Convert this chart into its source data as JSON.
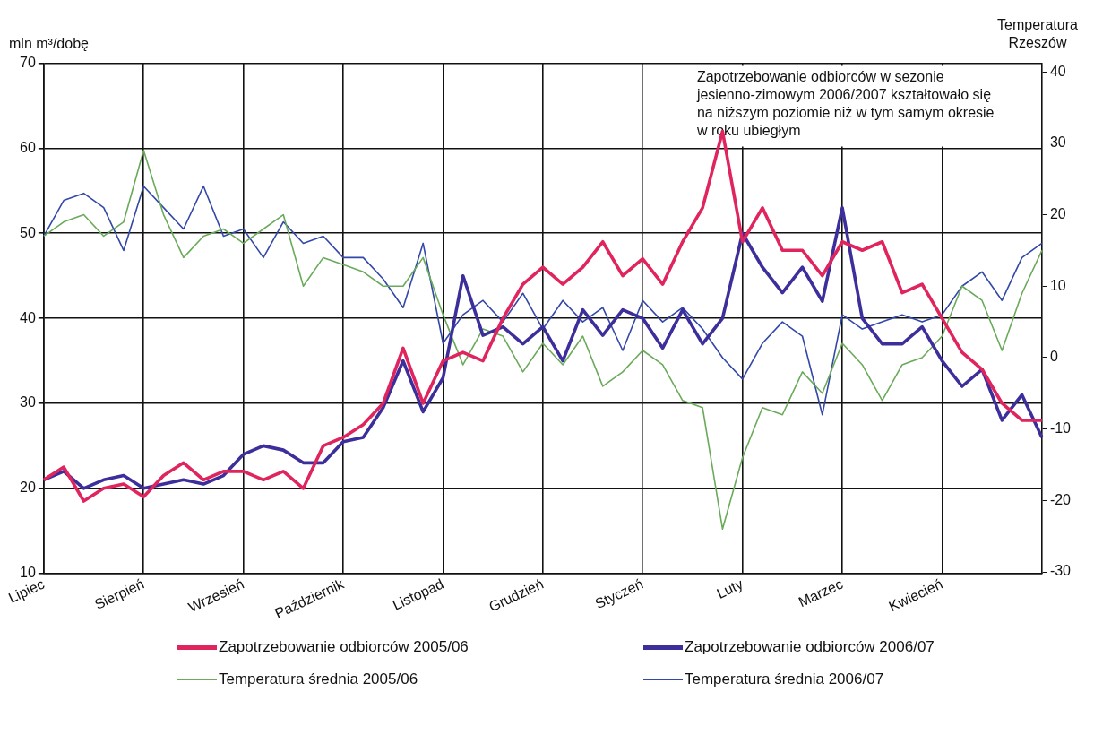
{
  "chart_data": {
    "type": "line",
    "ylabel": "mln m³/dobę",
    "y2label": "Temperatura Rzeszów",
    "annotations": [
      "Zapotrzebowanie odbiorców w sezonie jesienno-zimowym 2006/2007 kształtowało się na niższym poziomie niż w tym samym okresie w roku ubiegłym"
    ],
    "categories": [
      "Lipiec",
      null,
      null,
      null,
      null,
      "Sierpień",
      null,
      null,
      null,
      null,
      "Wrzesień",
      null,
      null,
      null,
      null,
      "Październik",
      null,
      null,
      null,
      null,
      "Listopad",
      null,
      null,
      null,
      null,
      "Grudzień",
      null,
      null,
      null,
      null,
      "Styczeń",
      null,
      null,
      null,
      null,
      "Luty",
      null,
      null,
      null,
      null,
      "Marzec",
      null,
      null,
      null,
      null,
      "Kwiecień",
      null,
      null,
      null,
      null,
      null
    ],
    "ylim": [
      10,
      70
    ],
    "yticks": [
      10,
      20,
      30,
      40,
      50,
      60,
      70
    ],
    "y2lim": [
      -30.2,
      41.2
    ],
    "y2ticks": [
      -30,
      -20,
      -10,
      0,
      10,
      20,
      30,
      40
    ],
    "grid": true,
    "legend": "bottom",
    "line_style": "solid",
    "marker": "none",
    "series": [
      {
        "name": "Zapotrzebowanie odbiorców 2005/06",
        "color": "#e0245e",
        "values": [
          21,
          22.5,
          18.5,
          20,
          20.5,
          19,
          21.5,
          23,
          21,
          22,
          22,
          21,
          22,
          20,
          25,
          26,
          27.5,
          30,
          36.5,
          30,
          35,
          36,
          35,
          40,
          44,
          46,
          44,
          46,
          49,
          45,
          47,
          44,
          49,
          53,
          62,
          49,
          53,
          48,
          48,
          45,
          49,
          48,
          49,
          43,
          44,
          40,
          36,
          34,
          30,
          28,
          28
        ]
      },
      {
        "name": "Zapotrzebowanie odbiorców 2006/07",
        "color": "#3c2f9c",
        "values": [
          21,
          22,
          20,
          21,
          21.5,
          20,
          20.5,
          21,
          20.5,
          21.5,
          24,
          25,
          24.5,
          23,
          23,
          25.5,
          26,
          29.5,
          35,
          29,
          33,
          45,
          38,
          39,
          37,
          39,
          35,
          41,
          38,
          41,
          40,
          36.5,
          41,
          37,
          40,
          50,
          46,
          43,
          46,
          42,
          53,
          40,
          37,
          37,
          39,
          35,
          32,
          34,
          28,
          31,
          26
        ]
      },
      {
        "name": "Temperatura średnia 2005/06",
        "color": "#6aaa5a",
        "axis": "y2",
        "values": [
          17,
          19,
          20,
          17,
          19,
          29,
          20,
          14,
          17,
          18,
          16,
          18,
          20,
          10,
          14,
          13,
          12,
          10,
          10,
          14,
          6,
          -1,
          4,
          3,
          -2,
          2,
          -1,
          3,
          -4,
          -2,
          1,
          -1,
          -6,
          -7,
          -24,
          -14,
          -7,
          -8,
          -2,
          -5,
          2,
          -1,
          -6,
          -1,
          0,
          3,
          10,
          8,
          1,
          9,
          15
        ]
      },
      {
        "name": "Temperatura średnia 2006/07",
        "color": "#3348a8",
        "axis": "y2",
        "values": [
          17,
          22,
          23,
          21,
          15,
          24,
          21,
          18,
          24,
          17,
          18,
          14,
          19,
          16,
          17,
          14,
          14,
          11,
          7,
          16,
          2,
          6,
          8,
          5,
          9,
          4,
          8,
          5,
          7,
          1,
          8,
          5,
          7,
          4,
          0,
          -3,
          2,
          5,
          3,
          -8,
          6,
          4,
          5,
          6,
          5,
          6,
          10,
          12,
          8,
          14,
          16
        ]
      }
    ]
  }
}
